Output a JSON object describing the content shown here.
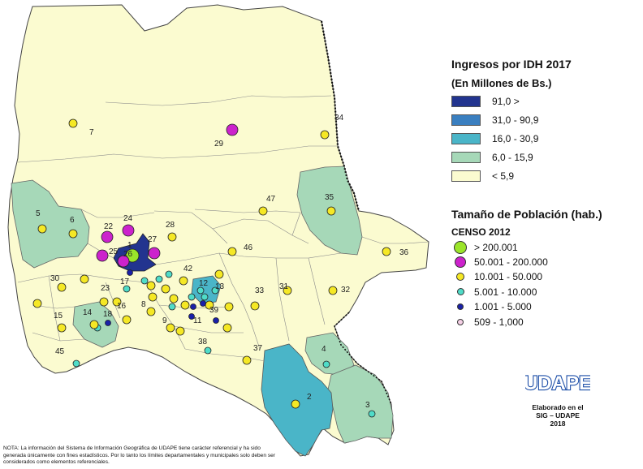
{
  "legend": {
    "income_title": "Ingresos por IDH 2017",
    "income_subtitle": "(En Millones de Bs.)",
    "income_classes": [
      {
        "label": "91,0 >",
        "color": "#22348f"
      },
      {
        "label": "31,0 - 90,9",
        "color": "#3a7fc0"
      },
      {
        "label": "16,0 - 30,9",
        "color": "#4ab5c8"
      },
      {
        "label": "6,0 - 15,9",
        "color": "#a6d8b8"
      },
      {
        "label": "< 5,9",
        "color": "#fbfbd0"
      }
    ],
    "population_title": "Tamaño de Población (hab.)",
    "population_subtitle": "CENSO 2012",
    "population_classes": [
      {
        "label": "> 200.001",
        "color": "#9be52a"
      },
      {
        "label": "50.001 - 200.000",
        "color": "#cc22cc"
      },
      {
        "label": "10.001 - 50.000",
        "color": "#f5e825"
      },
      {
        "label": "5.001 - 10.000",
        "color": "#4fdcc8"
      },
      {
        "label": "1.001 - 5.000",
        "color": "#1a20a8"
      },
      {
        "label": "509  - 1,000",
        "color": "#f5d0e6"
      }
    ]
  },
  "municipalities": [
    {
      "id": "1",
      "label": "1",
      "pop_class": 0
    },
    {
      "id": "2",
      "label": "2",
      "pop_class": 2
    },
    {
      "id": "3",
      "label": "3",
      "pop_class": 3
    },
    {
      "id": "4",
      "label": "4",
      "pop_class": 3
    },
    {
      "id": "5",
      "label": "5",
      "pop_class": 2
    },
    {
      "id": "6",
      "label": "6",
      "pop_class": 2
    },
    {
      "id": "7",
      "label": "7",
      "pop_class": 2
    },
    {
      "id": "8",
      "label": "8",
      "pop_class": 2
    },
    {
      "id": "9",
      "label": "9",
      "pop_class": 2
    },
    {
      "id": "11",
      "label": "11",
      "pop_class": 4
    },
    {
      "id": "12",
      "label": "12",
      "pop_class": 3
    },
    {
      "id": "13",
      "label": "13",
      "pop_class": 3
    },
    {
      "id": "14",
      "label": "14",
      "pop_class": 2
    },
    {
      "id": "15",
      "label": "15",
      "pop_class": 2
    },
    {
      "id": "16",
      "label": "16",
      "pop_class": 2
    },
    {
      "id": "17",
      "label": "17",
      "pop_class": 3
    },
    {
      "id": "18",
      "label": "18",
      "pop_class": 4
    },
    {
      "id": "22",
      "label": "22",
      "pop_class": 1
    },
    {
      "id": "23",
      "label": "23",
      "pop_class": 2
    },
    {
      "id": "24",
      "label": "24",
      "pop_class": 1
    },
    {
      "id": "25",
      "label": "25",
      "pop_class": 1
    },
    {
      "id": "26",
      "label": "26",
      "pop_class": 1
    },
    {
      "id": "27",
      "label": "27",
      "pop_class": 1
    },
    {
      "id": "28",
      "label": "28",
      "pop_class": 2
    },
    {
      "id": "29",
      "label": "29",
      "pop_class": 1
    },
    {
      "id": "30",
      "label": "30",
      "pop_class": 2
    },
    {
      "id": "31",
      "label": "31",
      "pop_class": 2
    },
    {
      "id": "32",
      "label": "32",
      "pop_class": 2
    },
    {
      "id": "33",
      "label": "33",
      "pop_class": 2
    },
    {
      "id": "34",
      "label": "34",
      "pop_class": 2
    },
    {
      "id": "35",
      "label": "35",
      "pop_class": 2
    },
    {
      "id": "36",
      "label": "36",
      "pop_class": 2
    },
    {
      "id": "37",
      "label": "37",
      "pop_class": 2
    },
    {
      "id": "38",
      "label": "38",
      "pop_class": 3
    },
    {
      "id": "39",
      "label": "39",
      "pop_class": 4
    },
    {
      "id": "42",
      "label": "42",
      "pop_class": 2
    },
    {
      "id": "45",
      "label": "45",
      "pop_class": 3
    },
    {
      "id": "46",
      "label": "46",
      "pop_class": 2
    },
    {
      "id": "47",
      "label": "47",
      "pop_class": 2
    }
  ],
  "extra_points": [
    {
      "pop_class": 2
    },
    {
      "pop_class": 2
    },
    {
      "pop_class": 2
    },
    {
      "pop_class": 2
    },
    {
      "pop_class": 2
    },
    {
      "pop_class": 2
    },
    {
      "pop_class": 2
    },
    {
      "pop_class": 2
    },
    {
      "pop_class": 2
    },
    {
      "pop_class": 2
    },
    {
      "pop_class": 3
    },
    {
      "pop_class": 3
    },
    {
      "pop_class": 3
    },
    {
      "pop_class": 3
    },
    {
      "pop_class": 3
    },
    {
      "pop_class": 3
    },
    {
      "pop_class": 4
    },
    {
      "pop_class": 4
    },
    {
      "pop_class": 4
    },
    {
      "pop_class": 2
    },
    {
      "pop_class": 2
    },
    {
      "pop_class": 3
    },
    {
      "pop_class": 2
    }
  ],
  "logo": {
    "brand": "UDAPE",
    "line1": "Elaborado en el",
    "line2": "SIG – UDAPE",
    "line3": "2018"
  },
  "note": "NOTA: La información del Sistema de Información Geográfica de UDAPE tiene carácter referencial y ha sido generada únicamente con fines estadísticos. Por lo tanto los límites departamentales y municipales solo deben ser considerados como elementos referenciales."
}
